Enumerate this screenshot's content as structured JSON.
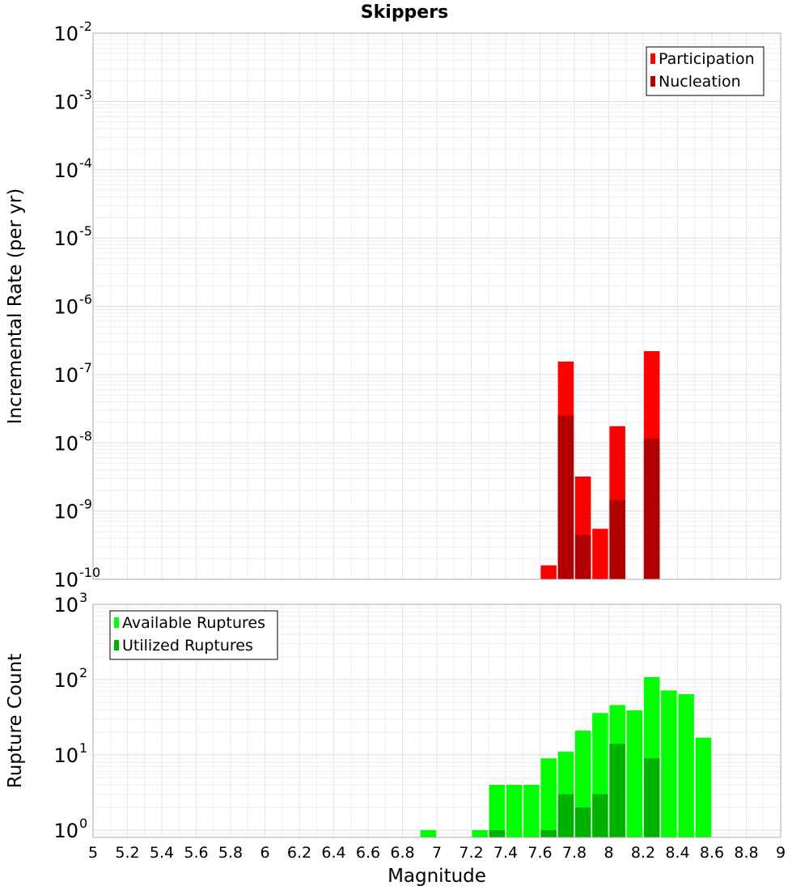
{
  "title": "Skippers",
  "x_axis": {
    "label": "Magnitude",
    "min": 5,
    "max": 9,
    "ticks": [
      "5",
      "5.2",
      "5.4",
      "5.6",
      "5.8",
      "6",
      "6.2",
      "6.4",
      "6.6",
      "6.8",
      "7",
      "7.2",
      "7.4",
      "7.6",
      "7.8",
      "8",
      "8.2",
      "8.4",
      "8.6",
      "8.8",
      "9"
    ]
  },
  "colors": {
    "participation": "#ff0000",
    "nucleation": "#b20000",
    "available": "#00ff00",
    "utilized": "#00b200"
  },
  "chart_data": [
    {
      "type": "bar",
      "ylabel": "Incremental Rate (per yr)",
      "yscale": "log",
      "ylim": [
        1e-10,
        0.01
      ],
      "y_tick_exponents": [
        "-10",
        "-9",
        "-8",
        "-7",
        "-6",
        "-5",
        "-4",
        "-3",
        "-2"
      ],
      "grid": true,
      "legend_position": "top-right",
      "x": [
        7.65,
        7.75,
        7.85,
        7.95,
        8.05,
        8.25
      ],
      "series": [
        {
          "name": "Participation",
          "color": "#ff0000",
          "values": [
            1.6e-10,
            1.55e-07,
            3.2e-09,
            5.5e-10,
            1.75e-08,
            2.2e-07
          ]
        },
        {
          "name": "Nucleation",
          "color": "#b20000",
          "values": [
            0,
            2.5e-08,
            4.5e-10,
            0,
            1.45e-09,
            1.15e-08
          ]
        }
      ]
    },
    {
      "type": "bar",
      "ylabel": "Rupture Count",
      "yscale": "log",
      "ylim": [
        0.8,
        1000
      ],
      "y_tick_exponents": [
        "0",
        "1",
        "2",
        "3"
      ],
      "grid": true,
      "legend_position": "top-left",
      "x": [
        6.95,
        7.25,
        7.35,
        7.45,
        7.55,
        7.65,
        7.75,
        7.85,
        7.95,
        8.05,
        8.15,
        8.25,
        8.35,
        8.45,
        8.55
      ],
      "series": [
        {
          "name": "Available Ruptures",
          "color": "#00ff00",
          "values": [
            1,
            1,
            4,
            4,
            4,
            9,
            11,
            21,
            36,
            46,
            39,
            108,
            72,
            64,
            17
          ]
        },
        {
          "name": "Utilized Ruptures",
          "color": "#00b200",
          "values": [
            0,
            0,
            1,
            0,
            0,
            1,
            3,
            2,
            3,
            14,
            0,
            9,
            0,
            0,
            0
          ]
        }
      ]
    }
  ]
}
